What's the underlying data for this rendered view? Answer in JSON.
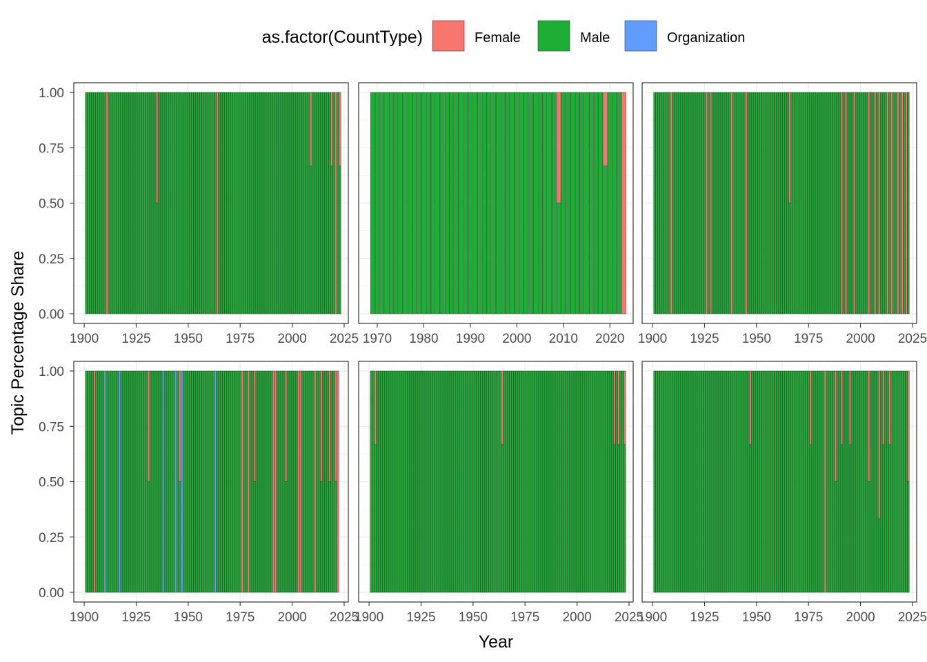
{
  "legend": {
    "title": "as.factor(CountType)",
    "items": [
      {
        "label": "Female",
        "color": "#F8766D"
      },
      {
        "label": "Male",
        "color": "#1DAE35"
      },
      {
        "label": "Organization",
        "color": "#619CFF"
      }
    ]
  },
  "chart_data": {
    "type": "bar",
    "stacked": true,
    "position": "fill",
    "xlabel": "Year",
    "ylabel": "Topic Percentage Share",
    "legend_position": "top",
    "grid": true,
    "stack_order": [
      "Female",
      "Male",
      "Organization"
    ],
    "colors": {
      "Female": "#F8766D",
      "Male": "#1DAE35",
      "Organization": "#619CFF"
    },
    "y_ticks": [
      0.0,
      0.25,
      0.5,
      0.75,
      1.0
    ],
    "y_tick_labels": [
      "0.00",
      "0.25",
      "0.50",
      "0.75",
      "1.00"
    ],
    "ylim": [
      0,
      1
    ],
    "facets": [
      {
        "x_range": [
          1901,
          2023
        ],
        "xlim": [
          1895,
          2027
        ],
        "x_ticks": [
          1900,
          1925,
          1950,
          1975,
          2000,
          2025
        ],
        "exceptions": [
          {
            "year": 1911,
            "Female": 1.0
          },
          {
            "year": 1935,
            "Female": 0.5
          },
          {
            "year": 1964,
            "Female": 1.0
          },
          {
            "year": 2009,
            "Female": 0.333
          },
          {
            "year": 2019,
            "Female": 0.333
          },
          {
            "year": 2021,
            "Female": 1.0
          },
          {
            "year": 2023,
            "Female": 0.333
          }
        ]
      },
      {
        "x_range": [
          1969,
          2023
        ],
        "xlim": [
          1966,
          2025
        ],
        "x_ticks": [
          1970,
          1980,
          1990,
          2000,
          2010,
          2020
        ],
        "exceptions": [
          {
            "year": 2009,
            "Female": 0.5
          },
          {
            "year": 2019,
            "Female": 0.333
          },
          {
            "year": 2023,
            "Female": 1.0
          }
        ]
      },
      {
        "x_range": [
          1901,
          2023
        ],
        "xlim": [
          1895,
          2027
        ],
        "x_ticks": [
          1900,
          1925,
          1950,
          1975,
          2000,
          2025
        ],
        "exceptions": [
          {
            "year": 1909,
            "Female": 1.0
          },
          {
            "year": 1926,
            "Female": 1.0
          },
          {
            "year": 1928,
            "Female": 1.0
          },
          {
            "year": 1938,
            "Female": 1.0
          },
          {
            "year": 1945,
            "Female": 1.0
          },
          {
            "year": 1966,
            "Female": 0.5
          },
          {
            "year": 1991,
            "Female": 1.0
          },
          {
            "year": 1993,
            "Female": 1.0
          },
          {
            "year": 1997,
            "Female": 1.0
          },
          {
            "year": 2004,
            "Female": 1.0
          },
          {
            "year": 2007,
            "Female": 1.0
          },
          {
            "year": 2009,
            "Female": 1.0
          },
          {
            "year": 2013,
            "Female": 1.0
          },
          {
            "year": 2015,
            "Female": 1.0
          },
          {
            "year": 2018,
            "Female": 1.0
          },
          {
            "year": 2020,
            "Female": 1.0
          },
          {
            "year": 2022,
            "Female": 1.0
          }
        ]
      },
      {
        "x_range": [
          1901,
          2022
        ],
        "xlim": [
          1895,
          2027
        ],
        "x_ticks": [
          1900,
          1925,
          1950,
          1975,
          2000,
          2025
        ],
        "exceptions": [
          {
            "year": 1905,
            "Female": 1.0
          },
          {
            "year": 1910,
            "Organization": 1.0
          },
          {
            "year": 1917,
            "Organization": 1.0
          },
          {
            "year": 1931,
            "Female": 0.5
          },
          {
            "year": 1938,
            "Organization": 1.0
          },
          {
            "year": 1944,
            "Organization": 1.0
          },
          {
            "year": 1946,
            "Female": 0.5
          },
          {
            "year": 1947,
            "Organization": 1.0
          },
          {
            "year": 1963,
            "Organization": 1.0
          },
          {
            "year": 1976,
            "Female": 1.0
          },
          {
            "year": 1979,
            "Female": 1.0
          },
          {
            "year": 1982,
            "Female": 0.5
          },
          {
            "year": 1991,
            "Female": 1.0
          },
          {
            "year": 1992,
            "Female": 1.0
          },
          {
            "year": 1997,
            "Female": 0.5
          },
          {
            "year": 2003,
            "Female": 1.0
          },
          {
            "year": 2004,
            "Female": 1.0
          },
          {
            "year": 2011,
            "Female": 1.0
          },
          {
            "year": 2014,
            "Female": 0.5
          },
          {
            "year": 2018,
            "Female": 0.5
          },
          {
            "year": 2021,
            "Female": 0.5
          },
          {
            "year": 2022,
            "Female": 1.0
          }
        ]
      },
      {
        "x_range": [
          1901,
          2023
        ],
        "xlim": [
          1895,
          2027
        ],
        "x_ticks": [
          1900,
          1925,
          1950,
          1975,
          2000,
          2025
        ],
        "exceptions": [
          {
            "year": 1903,
            "Female": 0.333
          },
          {
            "year": 1964,
            "Female": 0.333
          },
          {
            "year": 2018,
            "Female": 0.333
          },
          {
            "year": 2020,
            "Female": 0.333
          },
          {
            "year": 2023,
            "Female": 0.333
          }
        ]
      },
      {
        "x_range": [
          1901,
          2023
        ],
        "xlim": [
          1895,
          2027
        ],
        "x_ticks": [
          1900,
          1925,
          1950,
          1975,
          2000,
          2025
        ],
        "exceptions": [
          {
            "year": 1947,
            "Female": 0.333
          },
          {
            "year": 1976,
            "Female": 0.333
          },
          {
            "year": 1983,
            "Female": 1.0
          },
          {
            "year": 1988,
            "Female": 0.5
          },
          {
            "year": 1991,
            "Female": 0.333
          },
          {
            "year": 1995,
            "Female": 0.333
          },
          {
            "year": 2004,
            "Female": 0.5
          },
          {
            "year": 2009,
            "Female": 0.667
          },
          {
            "year": 2011,
            "Female": 0.333
          },
          {
            "year": 2014,
            "Female": 0.333
          },
          {
            "year": 2023,
            "Female": 0.5
          }
        ]
      }
    ]
  }
}
